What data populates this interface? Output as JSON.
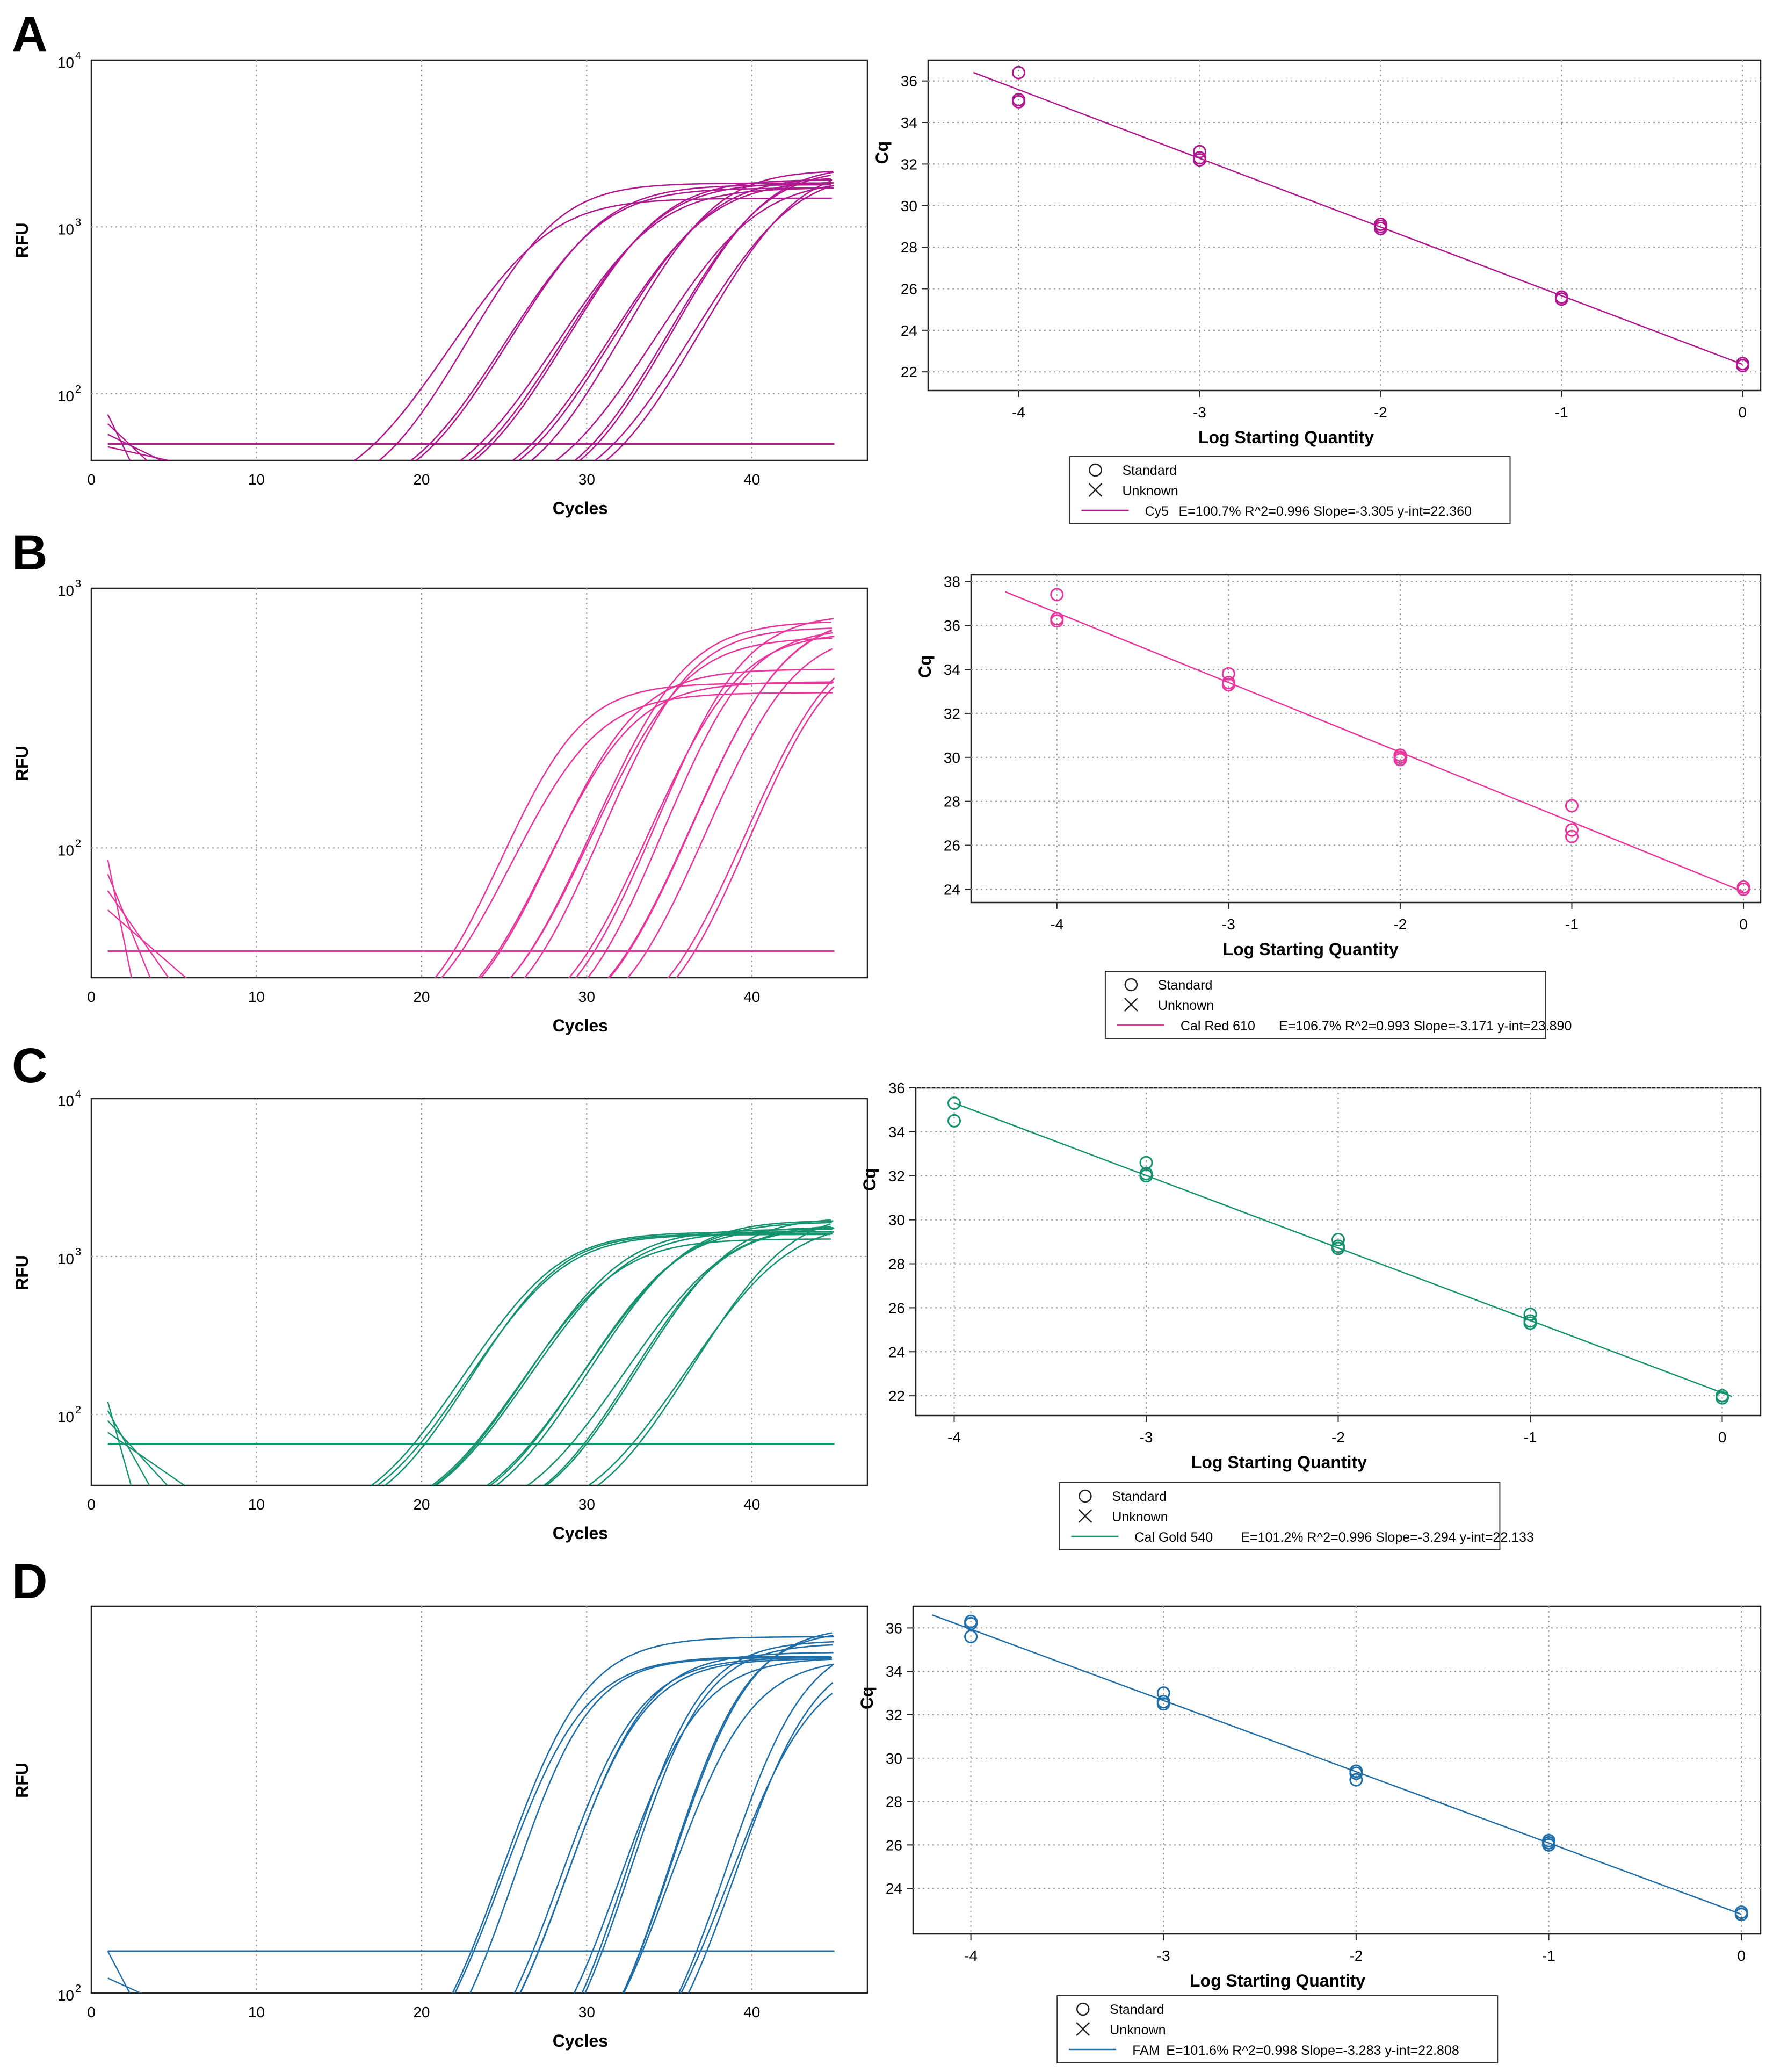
{
  "panels": [
    {
      "label": "A",
      "color": "#b0188f",
      "amplification": {
        "xlabel": "Cycles",
        "ylabel": "RFU",
        "xticks": [
          0,
          10,
          20,
          30,
          40
        ],
        "xlim": [
          0,
          47
        ],
        "ylim_log10": [
          1.6,
          4.0
        ],
        "yticks": [
          {
            "base": "10",
            "exp": "2",
            "value": 100
          },
          {
            "base": "10",
            "exp": "3",
            "value": 1000
          },
          {
            "base": "10",
            "exp": "4",
            "value": 10000
          }
        ],
        "threshold": 50,
        "baseline_spike": 75,
        "curve_groups": [
          {
            "ct": 23.0,
            "plateau": 1600,
            "n": 2
          },
          {
            "ct": 26.0,
            "plateau": 1700,
            "n": 2
          },
          {
            "ct": 29.5,
            "plateau": 1800,
            "n": 3
          },
          {
            "ct": 32.5,
            "plateau": 1900,
            "n": 3
          },
          {
            "ct": 35.5,
            "plateau": 2000,
            "n": 3
          },
          {
            "ct": 37.5,
            "plateau": 2100,
            "n": 2
          }
        ]
      },
      "standard_curve": {
        "xlabel": "Log Starting Quantity",
        "ylabel": "Cq",
        "xticks": [
          -4,
          -3,
          -2,
          -1,
          0
        ],
        "xlim": [
          -4.5,
          0.1
        ],
        "yticks": [
          22,
          24,
          26,
          28,
          30,
          32,
          34,
          36
        ],
        "ylim": [
          21.1,
          37.0
        ],
        "points": [
          [
            -4,
            36.4
          ],
          [
            -4,
            35.1
          ],
          [
            -4,
            35.0
          ],
          [
            -3,
            32.6
          ],
          [
            -3,
            32.3
          ],
          [
            -3,
            32.2
          ],
          [
            -2,
            29.1
          ],
          [
            -2,
            29.0
          ],
          [
            -2,
            28.9
          ],
          [
            -1,
            25.6
          ],
          [
            -1,
            25.5
          ],
          [
            0,
            22.4
          ],
          [
            0,
            22.3
          ]
        ],
        "fit": {
          "slope": -3.305,
          "intercept": 22.36,
          "x_range": [
            -4.25,
            0.0
          ]
        },
        "legend": {
          "standard": "Standard",
          "unknown": "Unknown",
          "fit_label": "Cy5",
          "fit_stats": "E=100.7% R^2=0.996 Slope=-3.305 y-int=22.360"
        }
      }
    },
    {
      "label": "B",
      "color": "#e8379c",
      "amplification": {
        "xlabel": "Cycles",
        "ylabel": "RFU",
        "xticks": [
          0,
          10,
          20,
          30,
          40
        ],
        "xlim": [
          0,
          47
        ],
        "ylim_log10": [
          1.5,
          3.0
        ],
        "yticks": [
          {
            "base": "10",
            "exp": "2",
            "value": 100
          },
          {
            "base": "10",
            "exp": "3",
            "value": 1000
          }
        ],
        "threshold": 40,
        "baseline_spike": 90,
        "curve_groups": [
          {
            "ct": 24.5,
            "plateau": 400,
            "n": 2
          },
          {
            "ct": 27.5,
            "plateau": 420,
            "n": 2
          },
          {
            "ct": 30.5,
            "plateau": 650,
            "n": 3
          },
          {
            "ct": 34.0,
            "plateau": 680,
            "n": 3
          },
          {
            "ct": 37.0,
            "plateau": 700,
            "n": 3
          },
          {
            "ct": 39.5,
            "plateau": 620,
            "n": 2
          }
        ]
      },
      "standard_curve": {
        "xlabel": "Log Starting Quantity",
        "ylabel": "Cq",
        "xticks": [
          -4,
          -3,
          -2,
          -1,
          0
        ],
        "xlim": [
          -4.5,
          0.1
        ],
        "yticks": [
          24,
          26,
          28,
          30,
          32,
          34,
          36,
          38
        ],
        "ylim": [
          23.4,
          38.3
        ],
        "points": [
          [
            -4,
            37.4
          ],
          [
            -4,
            36.3
          ],
          [
            -4,
            36.2
          ],
          [
            -3,
            33.8
          ],
          [
            -3,
            33.4
          ],
          [
            -3,
            33.3
          ],
          [
            -2,
            30.1
          ],
          [
            -2,
            30.0
          ],
          [
            -2,
            29.9
          ],
          [
            -1,
            27.8
          ],
          [
            -1,
            26.7
          ],
          [
            -1,
            26.4
          ],
          [
            0,
            24.1
          ],
          [
            0,
            24.0
          ]
        ],
        "fit": {
          "slope": -3.171,
          "intercept": 23.89,
          "x_range": [
            -4.3,
            0.0
          ]
        },
        "legend": {
          "standard": "Standard",
          "unknown": "Unknown",
          "fit_label": "Cal Red 610",
          "fit_stats": "E=106.7% R^2=0.993 Slope=-3.171 y-int=23.890"
        }
      }
    },
    {
      "label": "C",
      "color": "#15936e",
      "amplification": {
        "xlabel": "Cycles",
        "ylabel": "RFU",
        "xticks": [
          0,
          10,
          20,
          30,
          40
        ],
        "xlim": [
          0,
          47
        ],
        "ylim_log10": [
          1.55,
          4.0
        ],
        "yticks": [
          {
            "base": "10",
            "exp": "2",
            "value": 100
          },
          {
            "base": "10",
            "exp": "3",
            "value": 1000
          },
          {
            "base": "10",
            "exp": "4",
            "value": 10000
          }
        ],
        "threshold": 65,
        "baseline_spike": 120,
        "curve_groups": [
          {
            "ct": 23.5,
            "plateau": 1300,
            "n": 3
          },
          {
            "ct": 27.0,
            "plateau": 1400,
            "n": 3
          },
          {
            "ct": 30.5,
            "plateau": 1500,
            "n": 3
          },
          {
            "ct": 33.5,
            "plateau": 1600,
            "n": 3
          },
          {
            "ct": 37.0,
            "plateau": 1700,
            "n": 2
          }
        ]
      },
      "standard_curve": {
        "xlabel": "Log Starting Quantity",
        "ylabel": "Cq",
        "xticks": [
          -4,
          -3,
          -2,
          -1,
          0
        ],
        "xlim": [
          -4.2,
          0.2
        ],
        "yticks": [
          22,
          24,
          26,
          28,
          30,
          32,
          34,
          36
        ],
        "ylim": [
          21.1,
          36.0
        ],
        "points": [
          [
            -4,
            35.3
          ],
          [
            -4,
            34.5
          ],
          [
            -3,
            32.6
          ],
          [
            -3,
            32.1
          ],
          [
            -3,
            32.0
          ],
          [
            -2,
            29.1
          ],
          [
            -2,
            28.8
          ],
          [
            -2,
            28.7
          ],
          [
            -1,
            25.7
          ],
          [
            -1,
            25.4
          ],
          [
            -1,
            25.3
          ],
          [
            0,
            22.0
          ],
          [
            0,
            21.9
          ]
        ],
        "fit": {
          "slope": -3.294,
          "intercept": 22.133,
          "x_range": [
            -4.0,
            0.05
          ]
        },
        "legend": {
          "standard": "Standard",
          "unknown": "Unknown",
          "fit_label": "Cal Gold 540",
          "fit_stats": "E=101.2% R^2=0.996 Slope=-3.294 y-int=22.133"
        }
      }
    },
    {
      "label": "D",
      "color": "#1f6ea8",
      "amplification": {
        "xlabel": "Cycles",
        "ylabel": "RFU",
        "xticks": [
          0,
          10,
          20,
          30,
          40
        ],
        "xlim": [
          0,
          47
        ],
        "ylim_log10": [
          2.0,
          2.8
        ],
        "yticks": [
          {
            "base": "10",
            "exp": "2",
            "value": 100
          }
        ],
        "threshold": 122,
        "baseline_spike": 122,
        "curve_groups": [
          {
            "ct": 23.5,
            "plateau": 430,
            "n": 3
          },
          {
            "ct": 27.0,
            "plateau": 440,
            "n": 3
          },
          {
            "ct": 30.5,
            "plateau": 450,
            "n": 3
          },
          {
            "ct": 33.5,
            "plateau": 455,
            "n": 3
          },
          {
            "ct": 37.0,
            "plateau": 450,
            "n": 3
          }
        ]
      },
      "standard_curve": {
        "xlabel": "Log Starting Quantity",
        "ylabel": "Cq",
        "xticks": [
          -4,
          -3,
          -2,
          -1,
          0
        ],
        "xlim": [
          -4.3,
          0.1
        ],
        "yticks": [
          24,
          26,
          28,
          30,
          32,
          34,
          36
        ],
        "ylim": [
          21.9,
          37.0
        ],
        "points": [
          [
            -4,
            36.3
          ],
          [
            -4,
            36.2
          ],
          [
            -4,
            35.6
          ],
          [
            -3,
            33.0
          ],
          [
            -3,
            32.6
          ],
          [
            -3,
            32.5
          ],
          [
            -2,
            29.4
          ],
          [
            -2,
            29.3
          ],
          [
            -2,
            29.0
          ],
          [
            -1,
            26.2
          ],
          [
            -1,
            26.1
          ],
          [
            -1,
            26.0
          ],
          [
            0,
            22.9
          ],
          [
            0,
            22.8
          ]
        ],
        "fit": {
          "slope": -3.283,
          "intercept": 22.808,
          "x_range": [
            -4.2,
            0.0
          ]
        },
        "legend": {
          "standard": "Standard",
          "unknown": "Unknown",
          "fit_label": "FAM",
          "fit_stats": "E=101.6% R^2=0.998 Slope=-3.283 y-int=22.808"
        }
      }
    }
  ]
}
